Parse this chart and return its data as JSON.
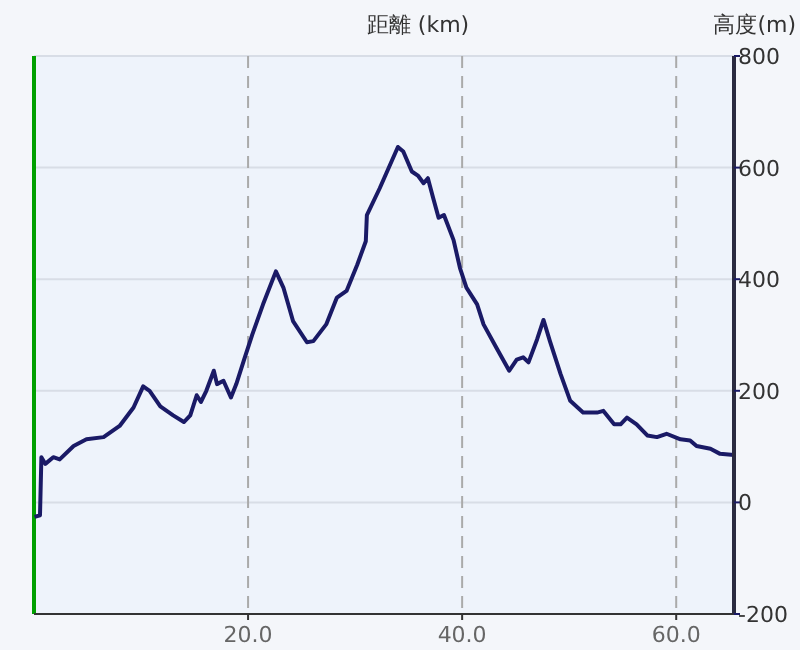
{
  "chart_data": {
    "type": "line",
    "xlabel": "距離 (km)",
    "ylabel": "高度(m)",
    "x": [
      0.06,
      0.56,
      0.69,
      1.06,
      1.8,
      2.4,
      3.7,
      4.9,
      6.5,
      8.0,
      9.3,
      10.2,
      10.8,
      11.8,
      13.0,
      14.0,
      14.6,
      15.2,
      15.6,
      16.1,
      16.8,
      17.1,
      17.7,
      18.4,
      18.9,
      19.6,
      20.4,
      21.4,
      22.6,
      23.3,
      24.2,
      25.5,
      26.1,
      27.3,
      28.3,
      29.2,
      30.2,
      31.0,
      31.1,
      32.3,
      34.0,
      34.5,
      35.3,
      35.9,
      36.4,
      36.8,
      37.3,
      37.8,
      38.3,
      39.2,
      39.8,
      40.4,
      41.4,
      42.0,
      43.2,
      44.4,
      45.1,
      45.7,
      46.2,
      47.0,
      47.6,
      48.2,
      49.2,
      50.1,
      51.3,
      52.6,
      53.2,
      54.2,
      54.8,
      55.4,
      56.3,
      57.3,
      58.2,
      59.1,
      60.4,
      61.3,
      61.9,
      63.2,
      64.1,
      65.4
    ],
    "series": [
      {
        "color": "#1a1a66",
        "values": [
          -26,
          -23,
          81,
          69,
          81,
          77,
          101,
          113,
          117,
          137,
          170,
          208,
          200,
          172,
          156,
          144,
          156,
          192,
          180,
          200,
          236,
          212,
          218,
          188,
          212,
          254,
          301,
          355,
          414,
          385,
          325,
          287,
          289,
          319,
          367,
          379,
          426,
          468,
          515,
          563,
          637,
          629,
          593,
          585,
          572,
          581,
          545,
          510,
          515,
          470,
          420,
          385,
          355,
          319,
          277,
          236,
          256,
          260,
          251,
          292,
          327,
          289,
          230,
          182,
          161,
          161,
          164,
          140,
          140,
          152,
          140,
          120,
          117,
          123,
          113,
          111,
          101,
          96,
          87,
          85
        ]
      }
    ],
    "xlim": [
      0,
      65.4
    ],
    "xticks": [
      {
        "value": 20,
        "label": "20.0"
      },
      {
        "value": 40,
        "label": "40.0"
      },
      {
        "value": 60,
        "label": "60.0"
      }
    ],
    "ylim": [
      -200,
      800
    ],
    "yticks": [
      -200,
      0,
      200,
      400,
      600,
      800
    ],
    "grid": true,
    "marker": "none",
    "line_style": "solid",
    "ref_lines": [
      {
        "axis": "x",
        "value": 0,
        "color": "#00a000"
      }
    ]
  }
}
